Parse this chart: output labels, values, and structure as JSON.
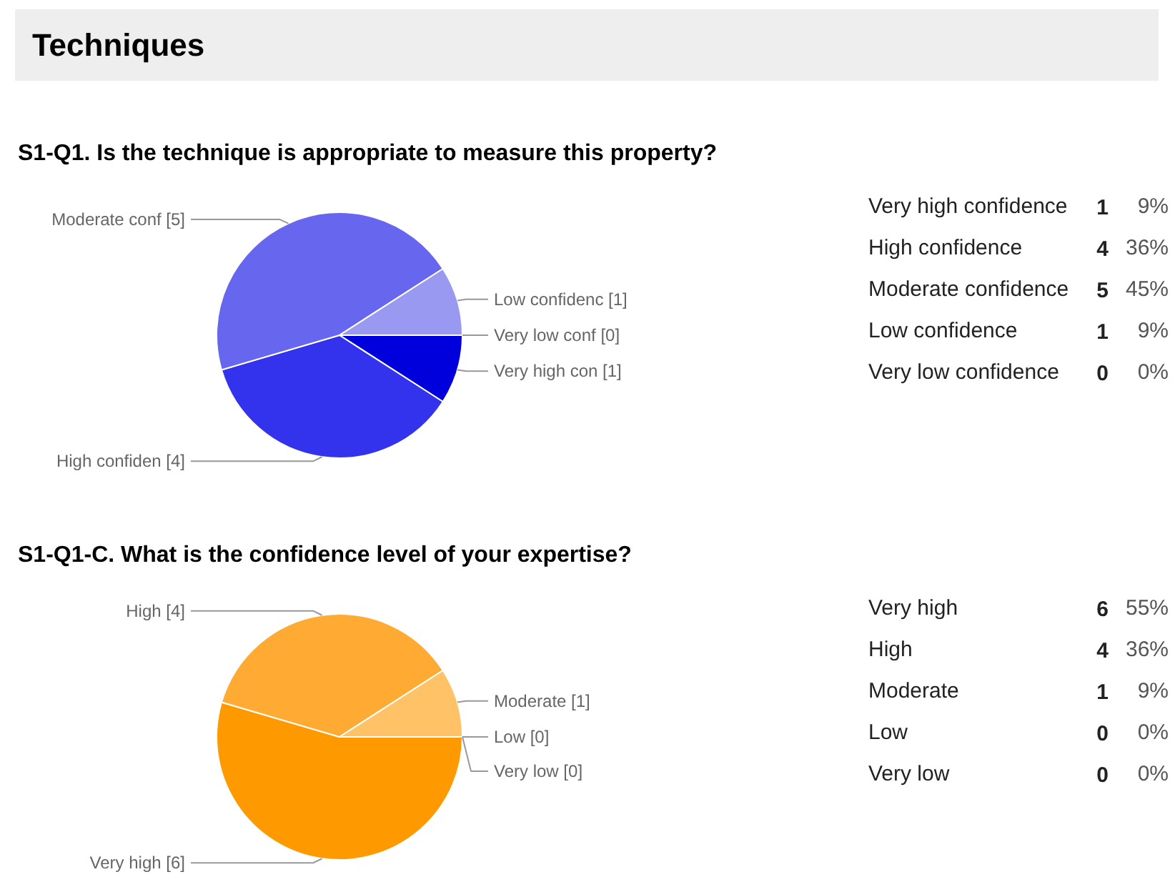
{
  "chart_data": [
    {
      "type": "other",
      "title": "Techniques"
    },
    {
      "type": "pie",
      "title": "S1-Q1. Is the technique is appropriate to measure this property?",
      "categories": [
        "Very high con [1]",
        "High confiden [4]",
        "Moderate conf [5]",
        "Low confidenc [1]",
        "Very low conf [0]"
      ],
      "values": [
        1,
        4,
        5,
        1,
        0
      ],
      "colors": [
        "#0000dd",
        "#3333ee",
        "#6666ee",
        "#9999f2",
        "#ccccff"
      ]
    },
    {
      "type": "other",
      "annotations": [
        "Very high confidence",
        "1",
        "9%",
        "High confidence",
        "4",
        "36%",
        "Moderate confidence",
        "5",
        "45%",
        "Low confidence",
        "1",
        "9%",
        "Very low confidence",
        "0",
        "0%"
      ]
    },
    {
      "type": "pie",
      "title": "S1-Q1-C. What is the confidence level of your expertise?",
      "categories": [
        "Very high [6]",
        "High [4]",
        "Moderate [1]",
        "Low [0]",
        "Very low [0]"
      ],
      "values": [
        6,
        4,
        1,
        0,
        0
      ],
      "colors": [
        "#ff9900",
        "#ffab33",
        "#ffc266",
        "#ffd699",
        "#ffe6c2"
      ]
    },
    {
      "type": "other",
      "annotations": [
        "Very high",
        "6",
        "55%",
        "High",
        "4",
        "36%",
        "Moderate",
        "1",
        "9%",
        "Low",
        "0",
        "0%",
        "Very low",
        "0",
        "0%"
      ]
    }
  ]
}
